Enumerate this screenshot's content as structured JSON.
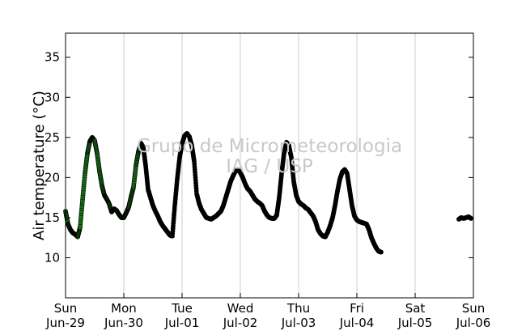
{
  "chart_data": {
    "type": "scatter",
    "ylabel": "Air temperature (°C)",
    "ylim": [
      5,
      38
    ],
    "yticks": [
      10,
      15,
      20,
      25,
      30,
      35
    ],
    "xlim": [
      "2014-06-29T00:00",
      "2014-07-06T00:00"
    ],
    "xticks": [
      {
        "at": "2014-06-29T00:00",
        "day": "Sun",
        "date": "Jun-29"
      },
      {
        "at": "2014-06-30T00:00",
        "day": "Mon",
        "date": "Jun-30"
      },
      {
        "at": "2014-07-01T00:00",
        "day": "Tue",
        "date": "Jul-01"
      },
      {
        "at": "2014-07-02T00:00",
        "day": "Wed",
        "date": "Jul-02"
      },
      {
        "at": "2014-07-03T00:00",
        "day": "Thu",
        "date": "Jul-03"
      },
      {
        "at": "2014-07-04T00:00",
        "day": "Fri",
        "date": "Jul-04"
      },
      {
        "at": "2014-07-05T00:00",
        "day": "Sat",
        "date": "Jul-05"
      },
      {
        "at": "2014-07-06T00:00",
        "day": "Sun",
        "date": "Jul-06"
      }
    ],
    "grid": "vertical",
    "watermark": [
      "Grupo de Micrometeorologia",
      "IAG / USP"
    ],
    "series": [
      {
        "color": "#1a7f1a",
        "points": [
          [
            "2014-06-29T00:00",
            15.8
          ],
          [
            "2014-06-29T01:00",
            14.2
          ],
          [
            "2014-06-29T02:00",
            13.5
          ],
          [
            "2014-06-29T03:00",
            13.1
          ],
          [
            "2014-06-29T04:00",
            12.9
          ],
          [
            "2014-06-29T05:00",
            12.6
          ],
          [
            "2014-06-29T06:00",
            13.8
          ],
          [
            "2014-06-29T07:00",
            17.2
          ],
          [
            "2014-06-29T08:00",
            20.5
          ],
          [
            "2014-06-29T09:00",
            23.0
          ],
          [
            "2014-06-29T10:00",
            24.5
          ],
          [
            "2014-06-29T11:00",
            25.0
          ],
          [
            "2014-06-29T12:00",
            24.6
          ],
          [
            "2014-06-29T13:00",
            23.0
          ],
          [
            "2014-06-29T14:00",
            20.8
          ],
          [
            "2014-06-29T15:00",
            19.0
          ],
          [
            "2014-06-29T16:00",
            17.8
          ],
          [
            "2014-06-29T17:00",
            17.3
          ],
          [
            "2014-06-29T18:00",
            16.7
          ],
          [
            "2014-06-29T19:00",
            15.7
          ],
          [
            "2014-06-29T20:00",
            16.1
          ],
          [
            "2014-06-29T21:00",
            15.9
          ],
          [
            "2014-06-29T22:00",
            15.4
          ],
          [
            "2014-06-29T23:00",
            15.0
          ],
          [
            "2014-06-30T00:00",
            15.0
          ],
          [
            "2014-06-30T01:00",
            15.6
          ],
          [
            "2014-06-30T02:00",
            16.3
          ],
          [
            "2014-06-30T03:00",
            17.6
          ],
          [
            "2014-06-30T04:00",
            18.8
          ],
          [
            "2014-06-30T05:00",
            21.5
          ],
          [
            "2014-06-30T06:00",
            23.2
          ],
          [
            "2014-06-30T07:00",
            24.3
          ]
        ]
      },
      {
        "color": "#000000",
        "points": [
          [
            "2014-06-30T07:00",
            24.3
          ],
          [
            "2014-06-30T08:00",
            23.8
          ],
          [
            "2014-06-30T09:00",
            21.5
          ],
          [
            "2014-06-30T10:00",
            18.5
          ],
          [
            "2014-06-30T11:00",
            17.5
          ],
          [
            "2014-06-30T12:00",
            16.5
          ],
          [
            "2014-06-30T13:00",
            15.8
          ],
          [
            "2014-06-30T14:00",
            15.2
          ],
          [
            "2014-06-30T15:00",
            14.5
          ],
          [
            "2014-06-30T16:00",
            14.0
          ],
          [
            "2014-06-30T17:00",
            13.6
          ],
          [
            "2014-06-30T18:00",
            13.2
          ],
          [
            "2014-06-30T19:00",
            12.8
          ],
          [
            "2014-06-30T20:00",
            12.7
          ],
          [
            "2014-06-30T21:00",
            16.5
          ],
          [
            "2014-06-30T22:00",
            19.8
          ],
          [
            "2014-06-30T23:00",
            22.5
          ],
          [
            "2014-07-01T00:00",
            24.2
          ],
          [
            "2014-07-01T01:00",
            25.2
          ],
          [
            "2014-07-01T02:00",
            25.5
          ],
          [
            "2014-07-01T03:00",
            25.1
          ],
          [
            "2014-07-01T04:00",
            24.0
          ],
          [
            "2014-07-01T05:00",
            22.0
          ],
          [
            "2014-07-01T06:00",
            18.0
          ],
          [
            "2014-07-01T07:00",
            16.8
          ],
          [
            "2014-07-01T08:00",
            16.0
          ],
          [
            "2014-07-01T09:00",
            15.5
          ],
          [
            "2014-07-01T10:00",
            15.0
          ],
          [
            "2014-07-01T11:00",
            14.9
          ],
          [
            "2014-07-01T12:00",
            14.8
          ],
          [
            "2014-07-01T13:00",
            15.0
          ],
          [
            "2014-07-01T14:00",
            15.2
          ],
          [
            "2014-07-01T15:00",
            15.5
          ],
          [
            "2014-07-01T16:00",
            15.8
          ],
          [
            "2014-07-01T17:00",
            16.5
          ],
          [
            "2014-07-01T18:00",
            17.5
          ],
          [
            "2014-07-01T19:00",
            18.5
          ],
          [
            "2014-07-01T20:00",
            19.5
          ],
          [
            "2014-07-01T21:00",
            20.2
          ],
          [
            "2014-07-01T22:00",
            20.8
          ],
          [
            "2014-07-01T23:00",
            21.0
          ],
          [
            "2014-07-02T00:00",
            20.6
          ],
          [
            "2014-07-02T01:00",
            20.0
          ],
          [
            "2014-07-02T02:00",
            19.2
          ],
          [
            "2014-07-02T03:00",
            18.6
          ],
          [
            "2014-07-02T04:00",
            18.3
          ],
          [
            "2014-07-02T05:00",
            17.8
          ],
          [
            "2014-07-02T06:00",
            17.3
          ],
          [
            "2014-07-02T07:00",
            17.0
          ],
          [
            "2014-07-02T08:00",
            16.8
          ],
          [
            "2014-07-02T09:00",
            16.5
          ],
          [
            "2014-07-02T10:00",
            15.8
          ],
          [
            "2014-07-02T11:00",
            15.3
          ],
          [
            "2014-07-02T12:00",
            15.0
          ],
          [
            "2014-07-02T13:00",
            14.9
          ],
          [
            "2014-07-02T14:00",
            14.9
          ],
          [
            "2014-07-02T15:00",
            15.3
          ],
          [
            "2014-07-02T16:00",
            17.5
          ],
          [
            "2014-07-02T17:00",
            20.5
          ],
          [
            "2014-07-02T18:00",
            23.0
          ],
          [
            "2014-07-02T19:00",
            24.4
          ],
          [
            "2014-07-02T20:00",
            24.0
          ],
          [
            "2014-07-02T21:00",
            22.5
          ],
          [
            "2014-07-02T22:00",
            19.5
          ],
          [
            "2014-07-02T23:00",
            17.8
          ],
          [
            "2014-07-03T00:00",
            17.0
          ],
          [
            "2014-07-03T01:00",
            16.7
          ],
          [
            "2014-07-03T02:00",
            16.5
          ],
          [
            "2014-07-03T03:00",
            16.2
          ],
          [
            "2014-07-03T04:00",
            16.0
          ],
          [
            "2014-07-03T05:00",
            15.6
          ],
          [
            "2014-07-03T06:00",
            15.2
          ],
          [
            "2014-07-03T07:00",
            14.5
          ],
          [
            "2014-07-03T08:00",
            13.5
          ],
          [
            "2014-07-03T09:00",
            13.0
          ],
          [
            "2014-07-03T10:00",
            12.7
          ],
          [
            "2014-07-03T11:00",
            12.6
          ],
          [
            "2014-07-03T12:00",
            13.2
          ],
          [
            "2014-07-03T13:00",
            14.0
          ],
          [
            "2014-07-03T14:00",
            15.0
          ],
          [
            "2014-07-03T15:00",
            16.5
          ],
          [
            "2014-07-03T16:00",
            18.3
          ],
          [
            "2014-07-03T17:00",
            19.8
          ],
          [
            "2014-07-03T18:00",
            20.7
          ],
          [
            "2014-07-03T19:00",
            21.0
          ],
          [
            "2014-07-03T20:00",
            20.5
          ],
          [
            "2014-07-03T21:00",
            18.5
          ],
          [
            "2014-07-03T22:00",
            16.5
          ],
          [
            "2014-07-03T23:00",
            15.2
          ],
          [
            "2014-07-04T00:00",
            14.7
          ],
          [
            "2014-07-04T01:00",
            14.5
          ],
          [
            "2014-07-04T02:00",
            14.4
          ],
          [
            "2014-07-04T03:00",
            14.3
          ],
          [
            "2014-07-04T04:00",
            14.2
          ],
          [
            "2014-07-04T05:00",
            13.5
          ],
          [
            "2014-07-04T06:00",
            12.5
          ],
          [
            "2014-07-04T07:00",
            11.8
          ],
          [
            "2014-07-04T08:00",
            11.2
          ],
          [
            "2014-07-04T09:00",
            10.8
          ],
          [
            "2014-07-04T10:00",
            10.7
          ]
        ]
      },
      {
        "color": "#000000",
        "points": [
          [
            "2014-07-05T18:00",
            14.8
          ],
          [
            "2014-07-05T19:00",
            15.0
          ],
          [
            "2014-07-05T20:00",
            14.9
          ],
          [
            "2014-07-05T21:00",
            15.0
          ],
          [
            "2014-07-05T22:00",
            15.1
          ],
          [
            "2014-07-05T23:00",
            14.9
          ]
        ]
      }
    ]
  }
}
